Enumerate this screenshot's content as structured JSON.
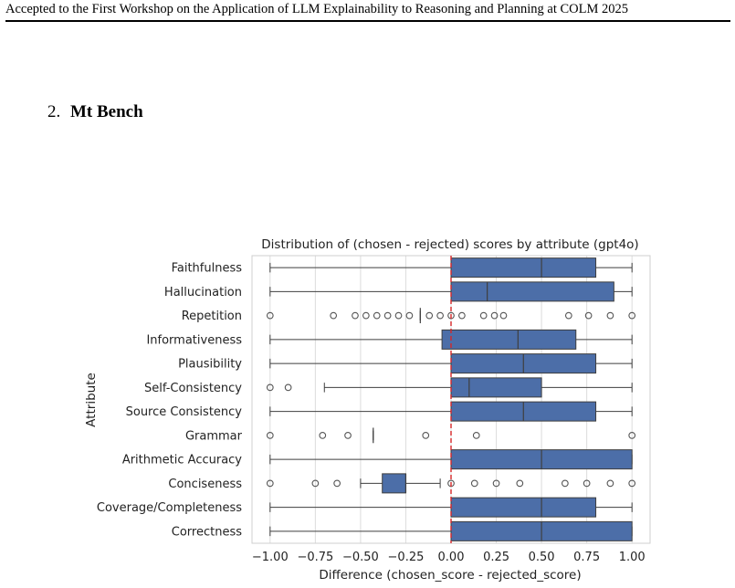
{
  "header": {
    "text": "Accepted to the First Workshop on the Application of LLM Explainability to Reasoning and Planning at COLM 2025"
  },
  "section": {
    "number": "2.",
    "title": "Mt Bench"
  },
  "colors": {
    "box_fill": "#4c6ea8",
    "box_edge": "#3f3f3f",
    "reference_line": "#d62728",
    "grid": "#dcdcdc",
    "frame": "#cfcfcf"
  },
  "chart_data": {
    "type": "box",
    "orientation": "horizontal",
    "title": "Distribution of (chosen - rejected) scores by attribute (gpt4o)",
    "xlabel": "Difference (chosen_score - rejected_score)",
    "ylabel": "Attribute",
    "xlim": [
      -1.1,
      1.1
    ],
    "xticks": [
      -1.0,
      -0.75,
      -0.5,
      -0.25,
      0.0,
      0.25,
      0.5,
      0.75,
      1.0
    ],
    "xtick_labels": [
      "−1.00",
      "−0.75",
      "−0.50",
      "−0.25",
      "0.00",
      "0.25",
      "0.50",
      "0.75",
      "1.00"
    ],
    "grid": "vertical",
    "reference_line": {
      "x": 0.0,
      "style": "dashed"
    },
    "categories": [
      "Faithfulness",
      "Hallucination",
      "Repetition",
      "Informativeness",
      "Plausibility",
      "Self-Consistency",
      "Source Consistency",
      "Grammar",
      "Arithmetic Accuracy",
      "Conciseness",
      "Coverage/Completeness",
      "Correctness"
    ],
    "boxes": [
      {
        "whisker_low": -1.0,
        "q1": 0.0,
        "median": 0.5,
        "q3": 0.8,
        "whisker_high": 1.0,
        "outliers": []
      },
      {
        "whisker_low": -1.0,
        "q1": 0.0,
        "median": 0.2,
        "q3": 0.9,
        "whisker_high": 1.0,
        "outliers": []
      },
      {
        "whisker_low": -0.17,
        "q1": -0.17,
        "median": -0.17,
        "q3": -0.17,
        "whisker_high": -0.17,
        "outliers": [
          -1.0,
          -0.65,
          -0.53,
          -0.47,
          -0.41,
          -0.35,
          -0.29,
          -0.23,
          -0.12,
          -0.06,
          0.0,
          0.06,
          0.18,
          0.24,
          0.29,
          0.65,
          0.76,
          0.88,
          1.0
        ]
      },
      {
        "whisker_low": -1.0,
        "q1": -0.05,
        "median": 0.37,
        "q3": 0.69,
        "whisker_high": 1.0,
        "outliers": []
      },
      {
        "whisker_low": -1.0,
        "q1": 0.0,
        "median": 0.4,
        "q3": 0.8,
        "whisker_high": 1.0,
        "outliers": []
      },
      {
        "whisker_low": -0.7,
        "q1": 0.0,
        "median": 0.1,
        "q3": 0.5,
        "whisker_high": 1.0,
        "outliers": [
          -1.0,
          -0.9
        ]
      },
      {
        "whisker_low": -1.0,
        "q1": 0.0,
        "median": 0.4,
        "q3": 0.8,
        "whisker_high": 1.0,
        "outliers": []
      },
      {
        "whisker_low": -0.43,
        "q1": -0.43,
        "median": -0.43,
        "q3": -0.43,
        "whisker_high": -0.43,
        "outliers": [
          -1.0,
          -0.71,
          -0.57,
          -0.14,
          0.14,
          1.0
        ]
      },
      {
        "whisker_low": -1.0,
        "q1": 0.0,
        "median": 0.5,
        "q3": 1.0,
        "whisker_high": 1.0,
        "outliers": []
      },
      {
        "whisker_low": -0.5,
        "q1": -0.38,
        "median": -0.25,
        "q3": -0.25,
        "whisker_high": -0.06,
        "outliers": [
          -1.0,
          -0.75,
          -0.63,
          0.0,
          0.13,
          0.25,
          0.38,
          0.63,
          0.75,
          0.88,
          1.0
        ]
      },
      {
        "whisker_low": -1.0,
        "q1": 0.0,
        "median": 0.5,
        "q3": 0.8,
        "whisker_high": 1.0,
        "outliers": []
      },
      {
        "whisker_low": -1.0,
        "q1": 0.0,
        "median": 0.5,
        "q3": 1.0,
        "whisker_high": 1.0,
        "outliers": []
      }
    ]
  }
}
